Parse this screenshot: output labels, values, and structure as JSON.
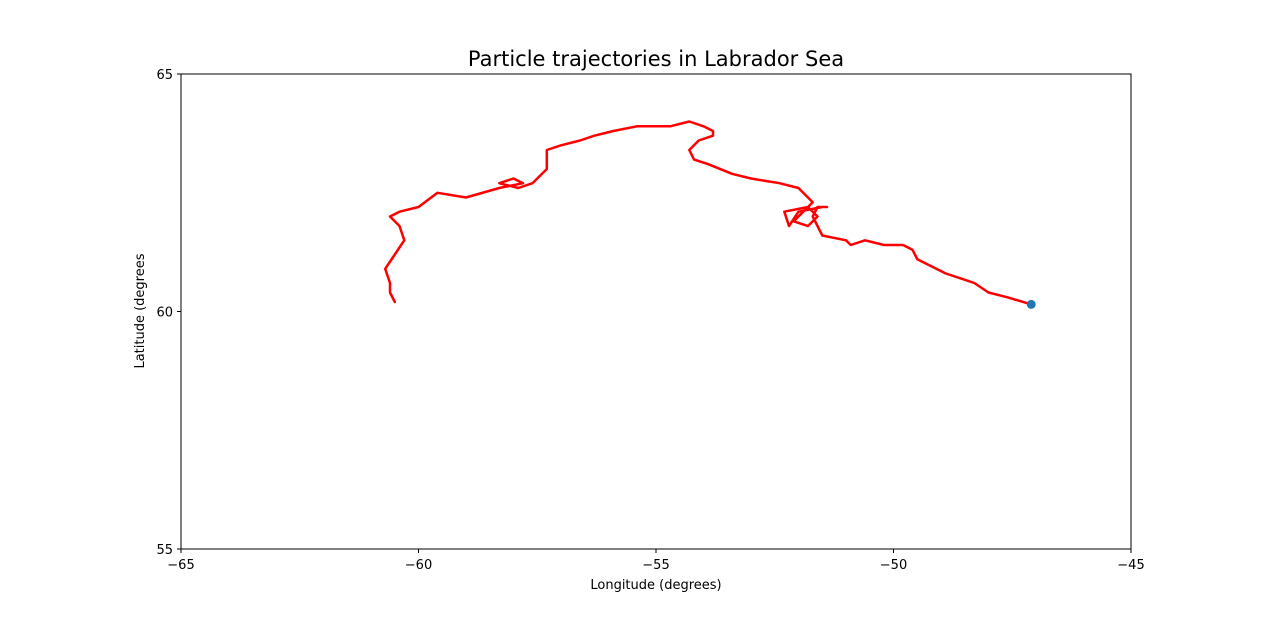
{
  "chart_data": {
    "type": "line",
    "title": "Particle trajectories in Labrador Sea",
    "xlabel": "Longitude (degrees)",
    "ylabel": "Latitude (degrees",
    "xlim": [
      -65,
      -45
    ],
    "ylim": [
      55,
      65
    ],
    "xticks": [
      -65,
      -60,
      -55,
      -50,
      -45
    ],
    "xtick_labels": [
      "−65",
      "−60",
      "−55",
      "−50",
      "−45"
    ],
    "yticks": [
      55,
      60,
      65
    ],
    "ytick_labels": [
      "55",
      "60",
      "65"
    ],
    "grid": false,
    "series": [
      {
        "color": "#ff0000",
        "x": [
          -47.1,
          -47.6,
          -48.0,
          -48.3,
          -48.6,
          -48.9,
          -49.3,
          -49.5,
          -49.6,
          -49.8,
          -49.9,
          -50.2,
          -50.6,
          -50.9,
          -51.0,
          -51.5,
          -51.6,
          -51.7,
          -51.6,
          -51.4,
          -51.5,
          -52.0,
          -52.2,
          -52.3,
          -51.8,
          -51.6,
          -51.8,
          -52.1,
          -51.7,
          -52.0,
          -52.4,
          -53.0,
          -53.4,
          -53.9,
          -54.2,
          -54.3,
          -54.1,
          -53.8,
          -53.8,
          -54.0,
          -54.3,
          -54.7,
          -55.1,
          -55.4,
          -55.9,
          -56.3,
          -56.6,
          -57.0,
          -57.3,
          -57.3,
          -57.6,
          -57.9,
          -58.3,
          -58.0,
          -57.8,
          -58.3,
          -59.0,
          -59.6,
          -60.0,
          -60.4,
          -60.6,
          -60.4,
          -60.3,
          -60.5,
          -60.7,
          -60.6,
          -60.6,
          -60.5
        ],
        "y": [
          60.15,
          60.3,
          60.4,
          60.6,
          60.7,
          60.8,
          61.0,
          61.1,
          61.3,
          61.4,
          61.4,
          61.4,
          61.5,
          61.4,
          61.5,
          61.6,
          61.8,
          62.0,
          62.2,
          62.2,
          62.2,
          62.1,
          61.8,
          62.1,
          62.2,
          62.0,
          61.8,
          61.9,
          62.3,
          62.6,
          62.7,
          62.8,
          62.9,
          63.1,
          63.2,
          63.4,
          63.6,
          63.7,
          63.8,
          63.9,
          64.0,
          63.9,
          63.9,
          63.9,
          63.8,
          63.7,
          63.6,
          63.5,
          63.4,
          63.0,
          62.7,
          62.6,
          62.7,
          62.8,
          62.7,
          62.6,
          62.4,
          62.5,
          62.2,
          62.1,
          62.0,
          61.8,
          61.5,
          61.2,
          60.9,
          60.6,
          60.4,
          60.2
        ]
      }
    ],
    "scatter": [
      {
        "color": "#1f77b4",
        "x": -47.1,
        "y": 60.15
      }
    ]
  }
}
